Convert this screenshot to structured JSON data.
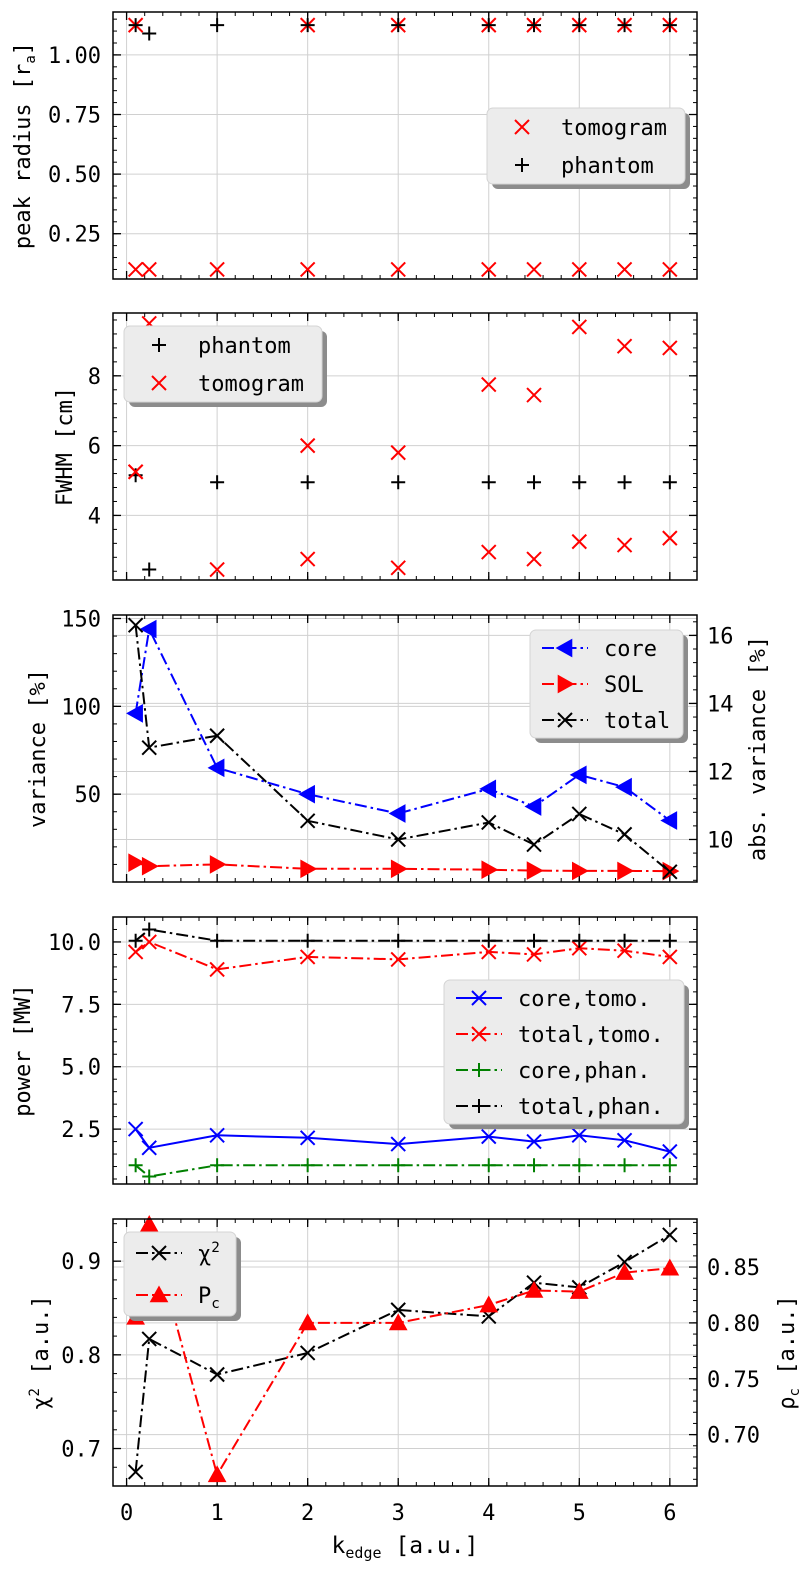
{
  "figure": {
    "xlabel_main": "k",
    "xlabel_sub": "edge",
    "xlabel_unit": " [a.u.]",
    "xticks": [
      0,
      1,
      2,
      3,
      4,
      5,
      6
    ],
    "xlim": [
      -0.15,
      6.3
    ]
  },
  "chart_data": [
    {
      "type": "scatter",
      "ylabel": "peak radius [r",
      "ylabel_sub": "a",
      "ylabel_end": "]",
      "ylim": [
        0.06,
        1.18
      ],
      "yticks": [
        0.25,
        0.5,
        0.75,
        1.0
      ],
      "yticklabels": [
        "0.25",
        "0.50",
        "0.75",
        "1.00"
      ],
      "legend": "center-right",
      "series": [
        {
          "name": "tomogram",
          "color": "#ff0000",
          "marker": "x",
          "line": "none",
          "x": [
            0.1,
            0.25,
            1,
            2,
            3,
            4,
            4.5,
            5,
            5.5,
            6,
            0.1,
            2,
            3,
            4,
            4.5,
            5,
            5.5,
            6
          ],
          "y": [
            0.1,
            0.1,
            0.1,
            0.1,
            0.1,
            0.1,
            0.1,
            0.1,
            0.1,
            0.1,
            1.125,
            1.125,
            1.125,
            1.125,
            1.125,
            1.125,
            1.125,
            1.125
          ]
        },
        {
          "name": "phantom",
          "color": "#000000",
          "marker": "+",
          "line": "none",
          "x": [
            0.1,
            0.25,
            1,
            2,
            3,
            4,
            4.5,
            5,
            5.5,
            6
          ],
          "y": [
            1.125,
            1.09,
            1.125,
            1.125,
            1.125,
            1.125,
            1.125,
            1.125,
            1.125,
            1.125
          ]
        }
      ]
    },
    {
      "type": "scatter",
      "ylabel": "FWHM [cm]",
      "ylim": [
        2.15,
        9.8
      ],
      "yticks": [
        4,
        6,
        8
      ],
      "yticklabels": [
        "4",
        "6",
        "8"
      ],
      "legend": "top-left",
      "series": [
        {
          "name": "phantom",
          "color": "#000000",
          "marker": "+",
          "line": "none",
          "x": [
            0.1,
            0.25,
            1,
            2,
            3,
            4,
            4.5,
            5,
            5.5,
            6
          ],
          "y": [
            5.15,
            2.45,
            4.95,
            4.95,
            4.95,
            4.95,
            4.95,
            4.95,
            4.95,
            4.95
          ]
        },
        {
          "name": "tomogram",
          "color": "#ff0000",
          "marker": "x",
          "line": "none",
          "x": [
            0.1,
            0.25,
            1,
            2,
            3,
            4,
            4.5,
            5,
            5.5,
            6,
            0.1,
            2,
            3,
            4,
            4.5,
            5,
            5.5,
            6
          ],
          "y": [
            5.25,
            9.5,
            2.45,
            2.75,
            2.5,
            2.95,
            2.75,
            3.25,
            3.15,
            3.35,
            5.25,
            6.0,
            5.8,
            7.75,
            7.45,
            9.4,
            8.85,
            8.8
          ]
        }
      ]
    },
    {
      "type": "line",
      "ylabel": "variance [%]",
      "ylabel_right": "abs. variance [%]",
      "ylim": [
        0,
        152
      ],
      "yticks": [
        50,
        100,
        150
      ],
      "yticklabels": [
        "50",
        "100",
        "150"
      ],
      "ylim_right": [
        8.75,
        16.6
      ],
      "yticks_right": [
        10,
        12,
        14,
        16
      ],
      "yticklabels_right": [
        "10",
        "12",
        "14",
        "16"
      ],
      "legend": "top-right",
      "series": [
        {
          "name": "core",
          "color": "#0000ff",
          "marker": "triangle-left",
          "line": "dashdot",
          "axis": "left",
          "x": [
            0.1,
            0.25,
            1,
            2,
            3,
            4,
            4.5,
            5,
            5.5,
            6
          ],
          "y": [
            96,
            144,
            65,
            50,
            39,
            53,
            43,
            61,
            54,
            35
          ]
        },
        {
          "name": "SOL",
          "color": "#ff0000",
          "marker": "triangle-right",
          "line": "dashdot",
          "axis": "left",
          "x": [
            0.1,
            0.25,
            1,
            2,
            3,
            4,
            4.5,
            5,
            5.5,
            6
          ],
          "y": [
            11,
            9,
            10,
            7.5,
            7.5,
            7,
            6.5,
            6.3,
            6.3,
            6.2
          ]
        },
        {
          "name": "total",
          "color": "#000000",
          "marker": "x",
          "line": "dashdot",
          "axis": "right",
          "x": [
            0.1,
            0.25,
            1,
            2,
            3,
            4,
            4.5,
            5,
            5.5,
            6
          ],
          "y": [
            16.3,
            12.7,
            13.05,
            10.55,
            10.0,
            10.5,
            9.85,
            10.75,
            10.15,
            9.05
          ]
        }
      ]
    },
    {
      "type": "line",
      "ylabel": "power [MW]",
      "ylim": [
        0.3,
        11.0
      ],
      "yticks": [
        2.5,
        5.0,
        7.5,
        10.0
      ],
      "yticklabels": [
        "2.5",
        "5.0",
        "7.5",
        "10.0"
      ],
      "legend": "center-right",
      "series": [
        {
          "name": "core,tomo.",
          "color": "#0000ff",
          "marker": "x",
          "line": "solid",
          "x": [
            0.1,
            0.25,
            1,
            2,
            3,
            4,
            4.5,
            5,
            5.5,
            6
          ],
          "y": [
            2.5,
            1.75,
            2.25,
            2.15,
            1.9,
            2.2,
            2.0,
            2.25,
            2.05,
            1.6
          ]
        },
        {
          "name": "total,tomo.",
          "color": "#ff0000",
          "marker": "x",
          "line": "dashdot",
          "x": [
            0.1,
            0.25,
            1,
            2,
            3,
            4,
            4.5,
            5,
            5.5,
            6
          ],
          "y": [
            9.6,
            10.0,
            8.9,
            9.4,
            9.3,
            9.6,
            9.5,
            9.75,
            9.65,
            9.4
          ]
        },
        {
          "name": "core,phan.",
          "color": "#008000",
          "marker": "+",
          "line": "dashdot",
          "x": [
            0.1,
            0.25,
            1,
            2,
            3,
            4,
            4.5,
            5,
            5.5,
            6
          ],
          "y": [
            1.05,
            0.6,
            1.05,
            1.05,
            1.05,
            1.05,
            1.05,
            1.05,
            1.05,
            1.05
          ]
        },
        {
          "name": "total,phan.",
          "color": "#000000",
          "marker": "+",
          "line": "dashdot",
          "x": [
            0.1,
            0.25,
            1,
            2,
            3,
            4,
            4.5,
            5,
            5.5,
            6
          ],
          "y": [
            10.05,
            10.5,
            10.05,
            10.05,
            10.05,
            10.05,
            10.05,
            10.05,
            10.05,
            10.05
          ]
        }
      ]
    },
    {
      "type": "line",
      "ylabel": "χ",
      "ylabel_sup": "2",
      "ylabel_end": " [a.u.]",
      "ylabel_right": "ρ",
      "ylabel_right_sub": "c",
      "ylabel_right_end": " [a.u.]",
      "ylim": [
        0.66,
        0.945
      ],
      "yticks": [
        0.7,
        0.8,
        0.9
      ],
      "yticklabels": [
        "0.7",
        "0.8",
        "0.9"
      ],
      "ylim_right": [
        0.654,
        0.893
      ],
      "yticks_right": [
        0.7,
        0.75,
        0.8,
        0.85
      ],
      "yticklabels_right": [
        "0.70",
        "0.75",
        "0.80",
        "0.85"
      ],
      "legend": "top-left",
      "series": [
        {
          "name": "χ",
          "name_sup": "2",
          "color": "#000000",
          "marker": "x",
          "line": "dashdot",
          "axis": "left",
          "x": [
            0.1,
            0.25,
            1,
            2,
            3,
            4,
            4.5,
            5,
            5.5,
            6
          ],
          "y": [
            0.675,
            0.817,
            0.779,
            0.802,
            0.848,
            0.841,
            0.877,
            0.872,
            0.899,
            0.928
          ]
        },
        {
          "name": "P",
          "name_sub": "c",
          "color": "#ff0000",
          "marker": "triangle-up",
          "line": "dashdot",
          "axis": "right",
          "x": [
            0.1,
            0.25,
            1,
            2,
            3,
            4,
            4.5,
            5,
            5.5,
            6
          ],
          "y": [
            0.805,
            0.888,
            0.664,
            0.8,
            0.8,
            0.816,
            0.829,
            0.828,
            0.845,
            0.849
          ]
        }
      ]
    }
  ]
}
